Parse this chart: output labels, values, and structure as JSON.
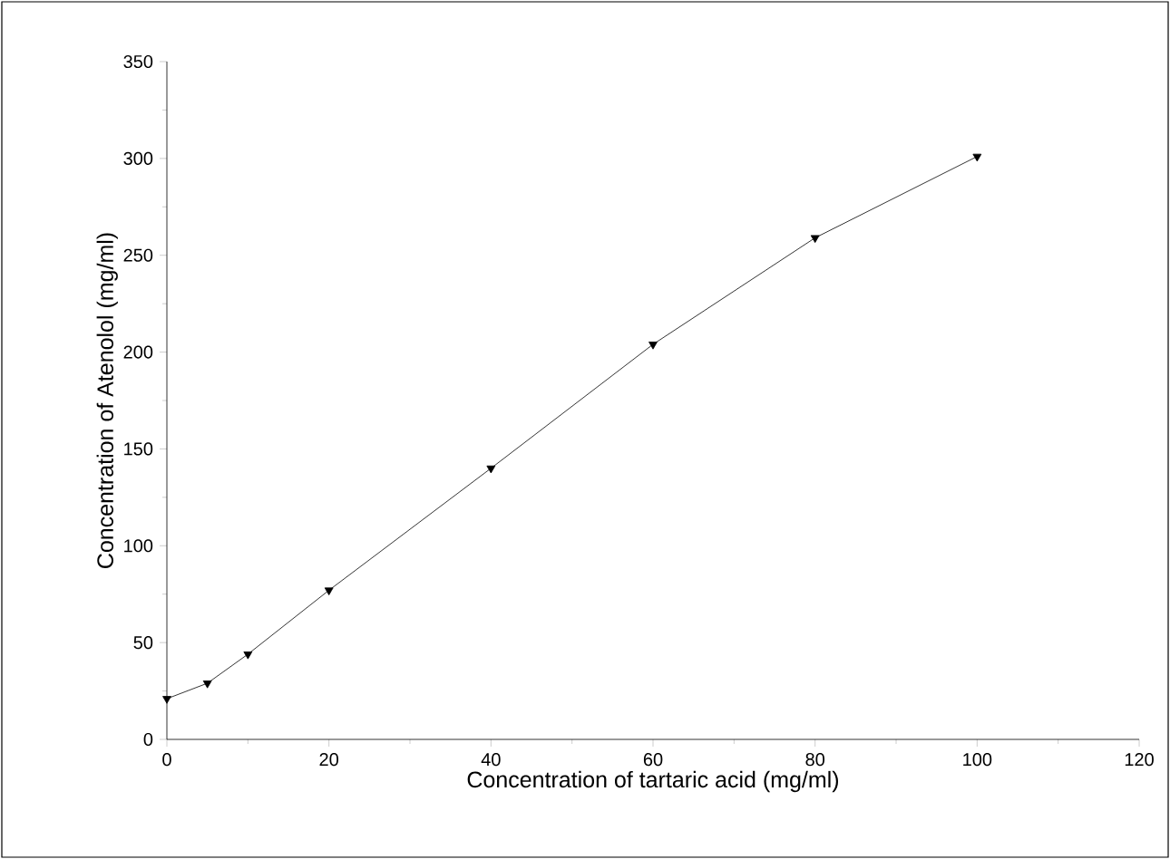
{
  "chart_data": {
    "type": "line",
    "xlabel": "Concentration of tartaric acid (mg/ml)",
    "ylabel": "Concentration of Atenolol (mg/ml)",
    "x": [
      0,
      5,
      10,
      20,
      40,
      60,
      80,
      100
    ],
    "series": [
      {
        "color": "#000000",
        "values": [
          21,
          29,
          44,
          77,
          140,
          204,
          259,
          301
        ]
      }
    ],
    "xlim": [
      0,
      120
    ],
    "xticks": [
      0,
      20,
      40,
      60,
      80,
      100,
      120
    ],
    "ylim": [
      0,
      350
    ],
    "yticks": [
      0,
      50,
      100,
      150,
      200,
      250,
      300,
      350
    ],
    "marker": "triangle",
    "line_style": "solid",
    "grid": false
  }
}
